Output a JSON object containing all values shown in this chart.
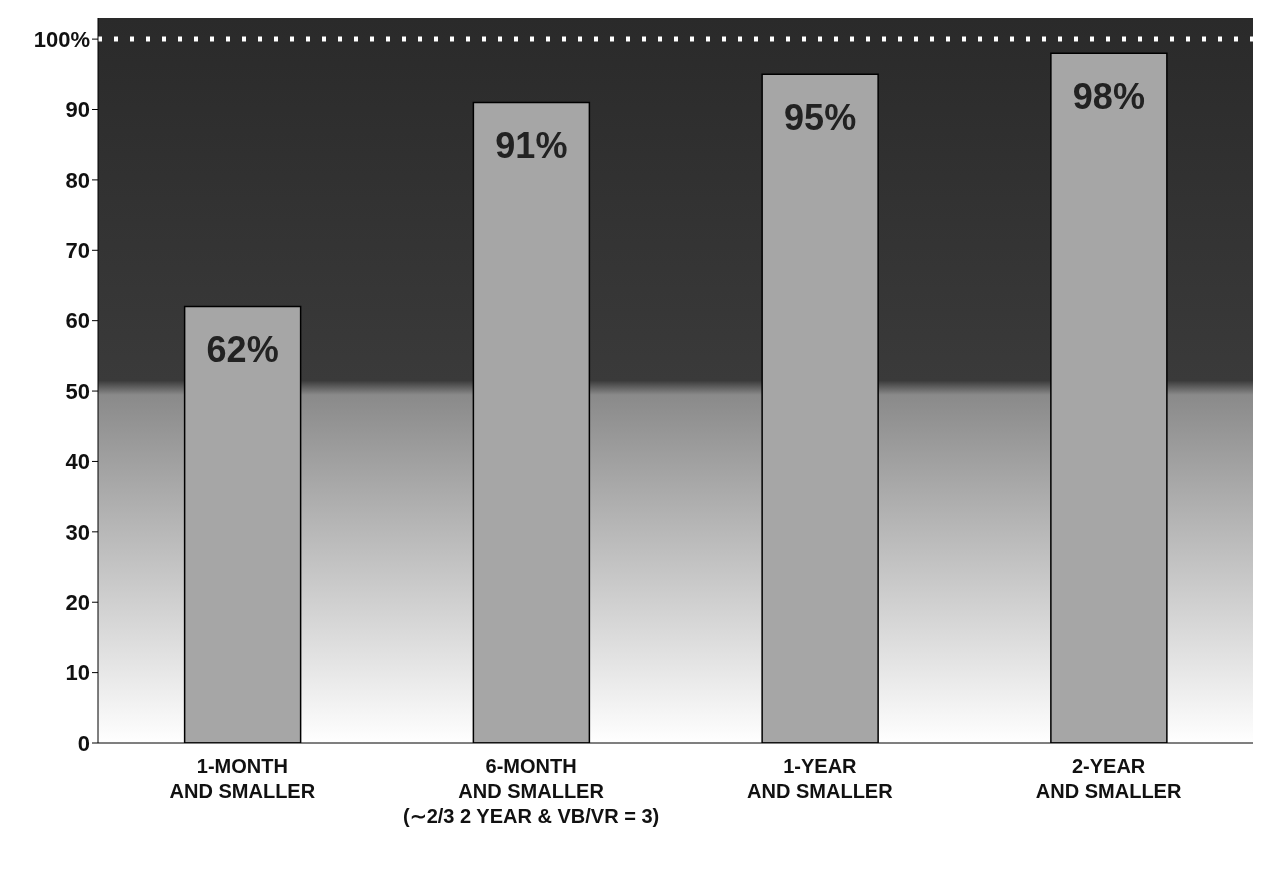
{
  "chart_data": {
    "type": "bar",
    "categories": [
      "1-MONTH\nAND SMALLER",
      "6-MONTH\nAND SMALLER\n(∼2/3 2 YEAR & VB/VR = 3)",
      "1-YEAR\nAND SMALLER",
      "2-YEAR\nAND SMALLER"
    ],
    "values": [
      62,
      91,
      95,
      98
    ],
    "value_labels": [
      "62%",
      "91%",
      "95%",
      "98%"
    ],
    "color": "#a6a6a6",
    "ylim": [
      0,
      103
    ],
    "yticks": [
      0,
      10,
      20,
      30,
      40,
      50,
      60,
      70,
      80,
      90,
      {
        "value": 100,
        "label": "100%"
      }
    ],
    "ref_lines": [
      {
        "axis": "y",
        "value": 100,
        "color": "#ffffff",
        "line_style": "dotted"
      }
    ],
    "grid": false
  }
}
